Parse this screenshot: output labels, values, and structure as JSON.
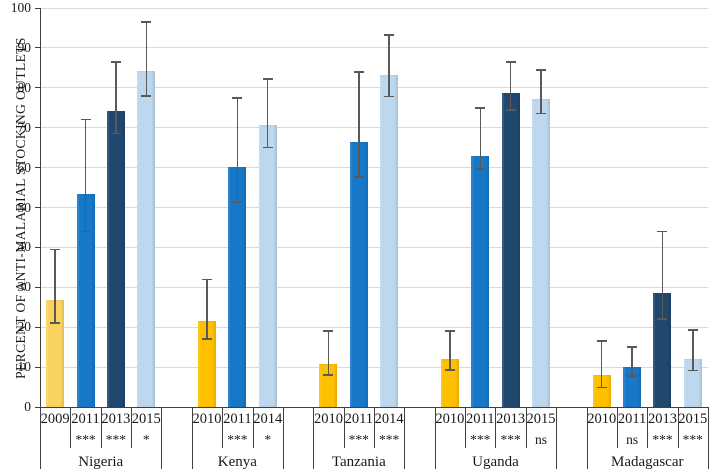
{
  "chart_data": {
    "type": "bar",
    "title": "",
    "xlabel": "",
    "ylabel": "PERCENT OF ANTI-MALARIAL STOCKING OUTLETS",
    "ylim": [
      0,
      100
    ],
    "ytick_step": 10,
    "yticks": [
      0,
      10,
      20,
      30,
      40,
      50,
      60,
      70,
      80,
      90,
      100
    ],
    "grid": true,
    "legend": "none",
    "error_bars": true,
    "axis_color": "#3f3f3f",
    "gridline_color": "#dadada",
    "error_bar_color": "#595959",
    "colors_by_year": {
      "2009": "#FAD35F",
      "2010": "#FFC000",
      "2011": "#1878C8",
      "2013": "#20486E",
      "2014": "#BDD7EE",
      "2015": "#BDD7EE"
    },
    "groups": [
      {
        "country": "Nigeria",
        "bars": [
          {
            "year": "2009",
            "value": 26.8,
            "err_low": 21.1,
            "err_high": 39.5,
            "sig": ""
          },
          {
            "year": "2011",
            "value": 53.3,
            "err_low": 44.0,
            "err_high": 72.0,
            "sig": "***"
          },
          {
            "year": "2013",
            "value": 74.3,
            "err_low": 68.5,
            "err_high": 86.5,
            "sig": "***"
          },
          {
            "year": "2015",
            "value": 84.2,
            "err_low": 78.0,
            "err_high": 96.5,
            "sig": "*"
          }
        ]
      },
      {
        "country": "Kenya",
        "bars": [
          {
            "year": "2010",
            "value": 21.5,
            "err_low": 17.0,
            "err_high": 32.0,
            "sig": ""
          },
          {
            "year": "2011",
            "value": 60.2,
            "err_low": 51.3,
            "err_high": 77.4,
            "sig": "***"
          },
          {
            "year": "2014",
            "value": 70.7,
            "err_low": 65.0,
            "err_high": 82.2,
            "sig": "*"
          }
        ]
      },
      {
        "country": "Tanzania",
        "bars": [
          {
            "year": "2010",
            "value": 10.9,
            "err_low": 8.0,
            "err_high": 19.0,
            "sig": ""
          },
          {
            "year": "2011",
            "value": 66.5,
            "err_low": 57.7,
            "err_high": 84.0,
            "sig": "***"
          },
          {
            "year": "2014",
            "value": 83.2,
            "err_low": 77.8,
            "err_high": 93.2,
            "sig": "***"
          }
        ]
      },
      {
        "country": "Uganda",
        "bars": [
          {
            "year": "2010",
            "value": 12.0,
            "err_low": 9.3,
            "err_high": 19.0,
            "sig": ""
          },
          {
            "year": "2011",
            "value": 63.0,
            "err_low": 59.6,
            "err_high": 75.0,
            "sig": "***"
          },
          {
            "year": "2013",
            "value": 78.8,
            "err_low": 74.4,
            "err_high": 86.5,
            "sig": "***"
          },
          {
            "year": "2015",
            "value": 77.2,
            "err_low": 73.6,
            "err_high": 84.5,
            "sig": "ns"
          }
        ]
      },
      {
        "country": "Madagascar",
        "bars": [
          {
            "year": "2010",
            "value": 8.0,
            "err_low": 4.9,
            "err_high": 16.6,
            "sig": ""
          },
          {
            "year": "2011",
            "value": 9.9,
            "err_low": 7.8,
            "err_high": 15.1,
            "sig": "ns"
          },
          {
            "year": "2013",
            "value": 28.6,
            "err_low": 22.0,
            "err_high": 44.0,
            "sig": "***"
          },
          {
            "year": "2015",
            "value": 12.0,
            "err_low": 9.1,
            "err_high": 19.3,
            "sig": "***"
          }
        ]
      }
    ]
  }
}
